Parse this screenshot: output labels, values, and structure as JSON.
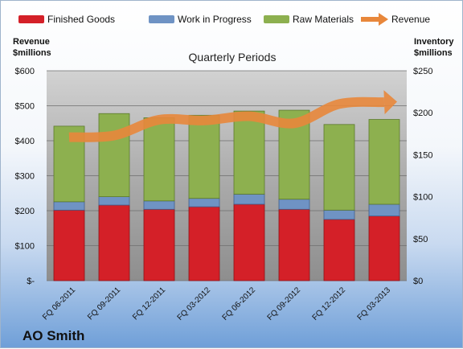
{
  "chart_data": {
    "type": "bar",
    "stacked": true,
    "title": "Quarterly Periods",
    "categories": [
      "FQ 06-2011",
      "FQ 09-2011",
      "FQ 12-2011",
      "FQ 03-2012",
      "FQ 06-2012",
      "FQ 09-2012",
      "FQ 12-2012",
      "FQ 03-2013"
    ],
    "series": [
      {
        "name": "Finished Goods",
        "axis": "right",
        "color": "#d42028",
        "values": [
          84,
          90,
          85,
          88,
          91,
          85,
          73,
          77
        ]
      },
      {
        "name": "Work in Progress",
        "axis": "right",
        "color": "#6f93c4",
        "values": [
          10,
          10,
          10,
          10,
          12,
          12,
          11,
          14
        ]
      },
      {
        "name": "Raw Materials",
        "axis": "right",
        "color": "#8db04f",
        "values": [
          90,
          99,
          99,
          99,
          99,
          106,
          102,
          101
        ]
      },
      {
        "name": "Revenue",
        "type": "line",
        "axis": "left",
        "color": "#e8873b",
        "values": [
          410,
          415,
          460,
          458,
          470,
          450,
          505,
          510
        ]
      }
    ],
    "ylabel_left": "Revenue $millions",
    "ylabel_right": "Inventory $millions",
    "ylim_left": [
      0,
      600
    ],
    "ylim_right": [
      0,
      250
    ],
    "yticks_left": [
      "$-",
      "$100",
      "$200",
      "$300",
      "$400",
      "$500",
      "$600"
    ],
    "yticks_right": [
      "$0",
      "$50",
      "$100",
      "$150",
      "$200",
      "$250"
    ],
    "legend_position": "top",
    "grid": true
  },
  "labels": {
    "title": "Quarterly Periods",
    "left_axis_title": [
      "Revenue",
      "$millions"
    ],
    "right_axis_title": [
      "Inventory",
      "$millions"
    ],
    "company": "AO Smith"
  },
  "legend": [
    {
      "label": "Finished Goods",
      "color": "#d42028"
    },
    {
      "label": "Work in Progress",
      "color": "#6f93c4"
    },
    {
      "label": "Raw Materials",
      "color": "#8db04f"
    },
    {
      "label": "Revenue",
      "color": "#e8873b"
    }
  ]
}
